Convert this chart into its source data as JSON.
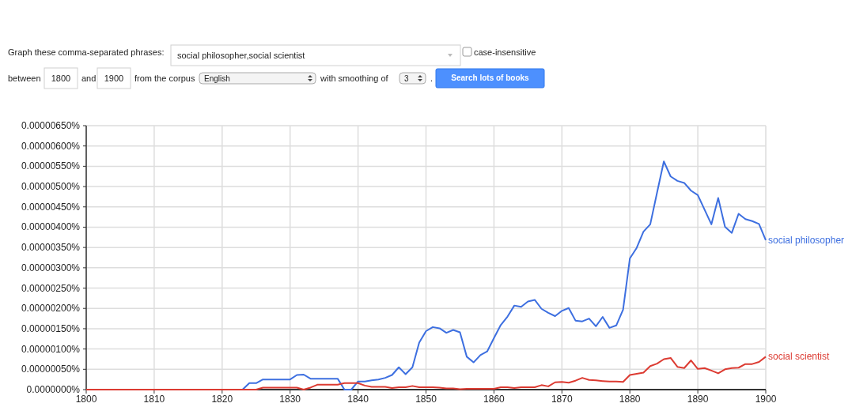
{
  "chart_data": {
    "type": "line",
    "x": [
      1800,
      1801,
      1802,
      1803,
      1804,
      1805,
      1806,
      1807,
      1808,
      1809,
      1810,
      1811,
      1812,
      1813,
      1814,
      1815,
      1816,
      1817,
      1818,
      1819,
      1820,
      1821,
      1822,
      1823,
      1824,
      1825,
      1826,
      1827,
      1828,
      1829,
      1830,
      1831,
      1832,
      1833,
      1834,
      1835,
      1836,
      1837,
      1838,
      1839,
      1840,
      1841,
      1842,
      1843,
      1844,
      1845,
      1846,
      1847,
      1848,
      1849,
      1850,
      1851,
      1852,
      1853,
      1854,
      1855,
      1856,
      1857,
      1858,
      1859,
      1860,
      1861,
      1862,
      1863,
      1864,
      1865,
      1866,
      1867,
      1868,
      1869,
      1870,
      1871,
      1872,
      1873,
      1874,
      1875,
      1876,
      1877,
      1878,
      1879,
      1880,
      1881,
      1882,
      1883,
      1884,
      1885,
      1886,
      1887,
      1888,
      1889,
      1890,
      1891,
      1892,
      1893,
      1894,
      1895,
      1896,
      1897,
      1898,
      1899,
      1900
    ],
    "series": [
      {
        "name": "social philosopher",
        "color": "#3d6fe0",
        "values": [
          null,
          null,
          null,
          null,
          null,
          null,
          null,
          null,
          null,
          null,
          null,
          null,
          null,
          null,
          null,
          null,
          null,
          null,
          null,
          null,
          null,
          null,
          null,
          0,
          1.6e-07,
          1.6e-07,
          2.5e-07,
          2.5e-07,
          2.5e-07,
          2.5e-07,
          2.5e-07,
          3.6e-07,
          3.7e-07,
          2.7e-07,
          2.7e-07,
          2.7e-07,
          2.7e-07,
          2.7e-07,
          0,
          0,
          2e-07,
          2e-07,
          2.3e-07,
          2.5e-07,
          2.9e-07,
          3.6e-07,
          5.5e-07,
          3.8e-07,
          5.5e-07,
          1.16e-06,
          1.44e-06,
          1.54e-06,
          1.51e-06,
          1.4e-06,
          1.47e-06,
          1.41e-06,
          8.1e-07,
          6.7e-07,
          8.5e-07,
          9.4e-07,
          1.27e-06,
          1.59e-06,
          1.8e-06,
          2.07e-06,
          2.04e-06,
          2.17e-06,
          2.21e-06,
          1.99e-06,
          1.89e-06,
          1.81e-06,
          1.94e-06,
          2.01e-06,
          1.7e-06,
          1.68e-06,
          1.75e-06,
          1.56e-06,
          1.79e-06,
          1.52e-06,
          1.58e-06,
          1.97e-06,
          3.23e-06,
          3.49e-06,
          3.89e-06,
          4.07e-06,
          4.85e-06,
          5.62e-06,
          5.25e-06,
          5.14e-06,
          5.09e-06,
          4.9e-06,
          4.79e-06,
          4.43e-06,
          4.07e-06,
          4.72e-06,
          4.01e-06,
          3.86e-06,
          4.33e-06,
          4.2e-06,
          4.15e-06,
          4.08e-06,
          3.68e-06
        ]
      },
      {
        "name": "social scientist",
        "color": "#dc3b32",
        "values": [
          0,
          0,
          0,
          0,
          0,
          0,
          0,
          0,
          0,
          0,
          0,
          0,
          0,
          0,
          0,
          0,
          0,
          0,
          0,
          0,
          0,
          0,
          0,
          0,
          0,
          0,
          5e-08,
          5e-08,
          5e-08,
          5e-08,
          5e-08,
          5e-08,
          0,
          5e-08,
          1.2e-07,
          1.2e-07,
          1.2e-07,
          1.2e-07,
          1.6e-07,
          1.6e-07,
          1.6e-07,
          1e-07,
          7e-08,
          7e-08,
          7e-08,
          4e-08,
          6e-08,
          6e-08,
          9e-08,
          6e-08,
          6e-08,
          6e-08,
          5e-08,
          3e-08,
          3e-08,
          1e-08,
          2e-08,
          2e-08,
          2e-08,
          2e-08,
          2e-08,
          6e-08,
          6e-08,
          4e-08,
          6e-08,
          6e-08,
          6e-08,
          1.1e-07,
          8e-08,
          1.8e-07,
          1.9e-07,
          1.7e-07,
          2.2e-07,
          2.9e-07,
          2.4e-07,
          2.3e-07,
          2.1e-07,
          2e-07,
          2e-07,
          1.9e-07,
          3.6e-07,
          3.9e-07,
          4.2e-07,
          5.8e-07,
          6.4e-07,
          7.5e-07,
          7.8e-07,
          5.6e-07,
          5.3e-07,
          7.2e-07,
          5.1e-07,
          5.3e-07,
          4.7e-07,
          4e-07,
          5e-07,
          5.3e-07,
          5.4e-07,
          6.3e-07,
          6.3e-07,
          6.8e-07,
          8.1e-07
        ]
      }
    ],
    "xlim": [
      1800,
      1900
    ],
    "xticks": [
      1800,
      1810,
      1820,
      1830,
      1840,
      1850,
      1860,
      1870,
      1880,
      1890,
      1900
    ],
    "ylim": [
      0,
      6.5e-06
    ],
    "yticks": [
      {
        "value": 0,
        "label": "0.0000000%"
      },
      {
        "value": 5e-07,
        "label": "0.00000050%"
      },
      {
        "value": 1e-06,
        "label": "0.00000100%"
      },
      {
        "value": 1.5e-06,
        "label": "0.00000150%"
      },
      {
        "value": 2e-06,
        "label": "0.00000200%"
      },
      {
        "value": 2.5e-06,
        "label": "0.00000250%"
      },
      {
        "value": 3e-06,
        "label": "0.00000300%"
      },
      {
        "value": 3.5e-06,
        "label": "0.00000350%"
      },
      {
        "value": 4e-06,
        "label": "0.00000400%"
      },
      {
        "value": 4.5e-06,
        "label": "0.00000450%"
      },
      {
        "value": 5e-06,
        "label": "0.00000500%"
      },
      {
        "value": 5.5e-06,
        "label": "0.00000550%"
      },
      {
        "value": 6e-06,
        "label": "0.00000600%"
      },
      {
        "value": 6.5e-06,
        "label": "0.00000650%"
      }
    ],
    "grid": true,
    "annotations": [
      "Graph these comma-separated phrases:",
      "social philosopher,social scientist",
      "case-insensitive",
      "between",
      "1800",
      "and",
      "1900",
      "from the corpus",
      "English",
      "with smoothing of",
      "3",
      ".",
      "Search lots of books"
    ]
  }
}
